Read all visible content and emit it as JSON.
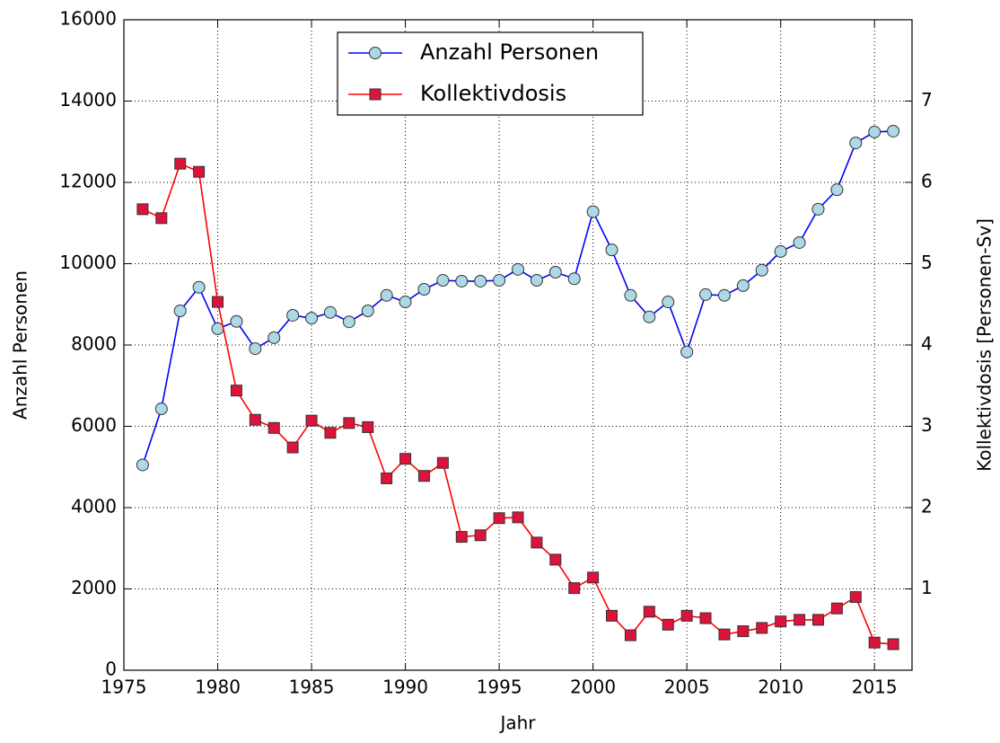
{
  "chart_data": {
    "type": "line",
    "x_label": "Jahr",
    "y_label": "Anzahl Personen",
    "y2_label": "Kollektivdosis [Personen-Sv]",
    "x": [
      1976,
      1977,
      1978,
      1979,
      1980,
      1981,
      1982,
      1983,
      1984,
      1985,
      1986,
      1987,
      1988,
      1989,
      1990,
      1991,
      1992,
      1993,
      1994,
      1995,
      1996,
      1997,
      1998,
      1999,
      2000,
      2001,
      2002,
      2003,
      2004,
      2005,
      2006,
      2007,
      2008,
      2009,
      2010,
      2011,
      2012,
      2013,
      2014,
      2015,
      2016
    ],
    "series": [
      {
        "name": "Anzahl Personen",
        "color": "#0000ff",
        "marker": "circle",
        "marker_color": "#add8e6",
        "axis": "y",
        "values": [
          5050,
          6430,
          8840,
          9420,
          8400,
          8580,
          7910,
          8180,
          8730,
          8660,
          8800,
          8570,
          8840,
          9220,
          9060,
          9370,
          9590,
          9570,
          9570,
          9590,
          9860,
          9590,
          9790,
          9630,
          11280,
          10340,
          9220,
          8690,
          9060,
          7830,
          9240,
          9220,
          9460,
          9840,
          10300,
          10520,
          11340,
          11820,
          12970,
          13240,
          13260
        ]
      },
      {
        "name": "Kollektivdosis",
        "color": "#ff0000",
        "marker": "square",
        "marker_color": "#dc143c",
        "axis": "y2",
        "values": [
          5.67,
          5.56,
          6.23,
          6.13,
          4.53,
          3.44,
          3.08,
          2.98,
          2.74,
          3.07,
          2.92,
          3.04,
          2.99,
          2.36,
          2.6,
          2.39,
          2.55,
          1.64,
          1.66,
          1.87,
          1.88,
          1.57,
          1.36,
          1.01,
          1.14,
          0.67,
          0.43,
          0.72,
          0.56,
          0.67,
          0.64,
          0.44,
          0.48,
          0.52,
          0.6,
          0.62,
          0.62,
          0.76,
          0.9,
          0.34,
          0.32
        ]
      }
    ],
    "xlim": [
      1975,
      2017
    ],
    "xticks": [
      1975,
      1980,
      1985,
      1990,
      1995,
      2000,
      2005,
      2010,
      2015
    ],
    "ylim": [
      0,
      16000
    ],
    "yticks": [
      0,
      2000,
      4000,
      6000,
      8000,
      10000,
      12000,
      14000,
      16000
    ],
    "y2lim": [
      0,
      8
    ],
    "y2ticks": [
      1,
      2,
      3,
      4,
      5,
      6,
      7
    ],
    "grid": true,
    "legend": "upper center"
  }
}
